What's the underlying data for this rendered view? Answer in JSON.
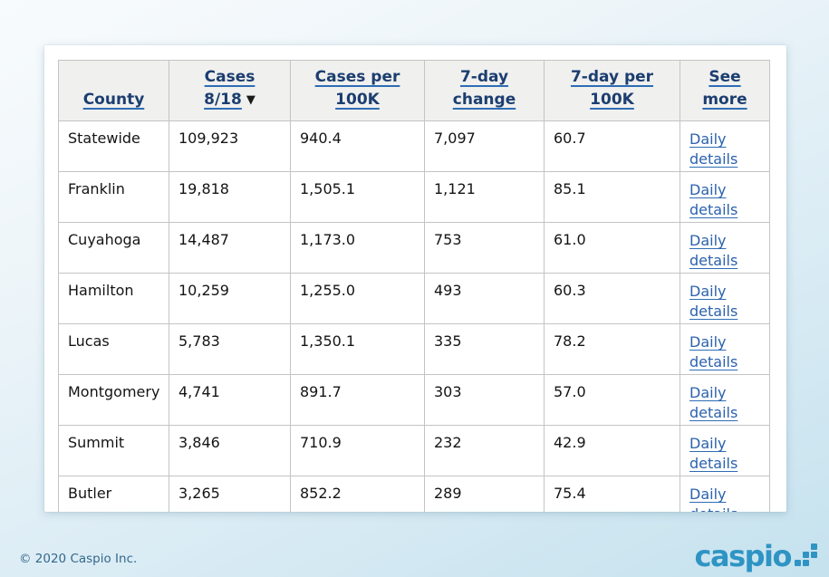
{
  "table": {
    "columns": [
      {
        "id": "county",
        "line1": "County",
        "line2": ""
      },
      {
        "id": "cases",
        "line1": "Cases",
        "line2": "8/18",
        "sort_arrow": "▼"
      },
      {
        "id": "cases-per-100k",
        "line1": "Cases per",
        "line2": "100K"
      },
      {
        "id": "7day-change",
        "line1": "7-day",
        "line2": "change"
      },
      {
        "id": "7day-per-100k",
        "line1": "7-day per",
        "line2": "100K"
      },
      {
        "id": "see-more",
        "line1": "See",
        "line2": "more"
      }
    ],
    "rows": [
      [
        "Statewide",
        "109,923",
        "940.4",
        "7,097",
        "60.7",
        "Daily details"
      ],
      [
        "Franklin",
        "19,818",
        "1,505.1",
        "1,121",
        "85.1",
        "Daily details"
      ],
      [
        "Cuyahoga",
        "14,487",
        "1,173.0",
        "753",
        "61.0",
        "Daily details"
      ],
      [
        "Hamilton",
        "10,259",
        "1,255.0",
        "493",
        "60.3",
        "Daily details"
      ],
      [
        "Lucas",
        "5,783",
        "1,350.1",
        "335",
        "78.2",
        "Daily details"
      ],
      [
        "Montgomery",
        "4,741",
        "891.7",
        "303",
        "57.0",
        "Daily details"
      ],
      [
        "Summit",
        "3,846",
        "710.9",
        "232",
        "42.9",
        "Daily details"
      ],
      [
        "Butler",
        "3,265",
        "852.2",
        "289",
        "75.4",
        "Daily details"
      ]
    ]
  },
  "footer": {
    "copyright": "© 2020 Caspio Inc.",
    "logo_text": "caspio"
  },
  "colors": {
    "header_text": "#1c3e70",
    "header_underline": "#2e6db4",
    "link_blue": "#2b62ad",
    "header_bg": "#f0f0ef",
    "table_border": "#c4c4c4",
    "brand_blue": "#2f94c4",
    "copyright_blue": "#33688c",
    "page_bg_top": "#f8fbfd",
    "page_bg_bottom": "#c5e2ee"
  }
}
